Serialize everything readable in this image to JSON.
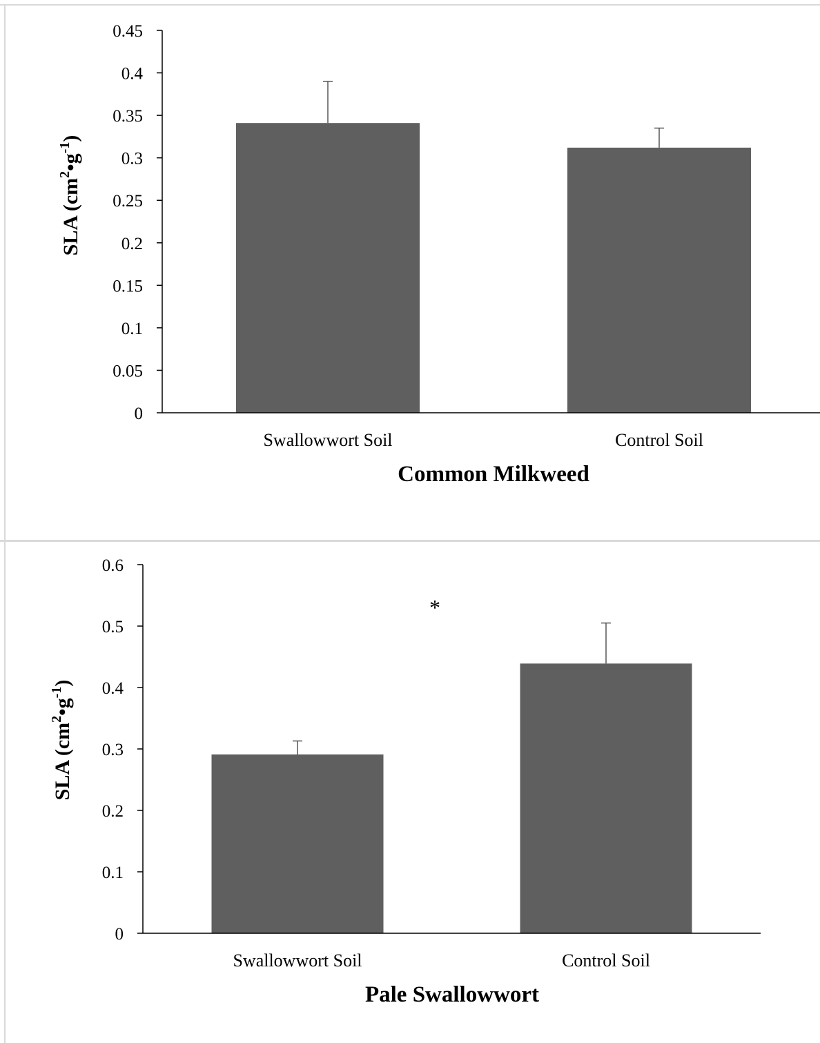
{
  "chart_data": [
    {
      "type": "bar",
      "categories": [
        "Swallowwort Soil",
        "Control Soil"
      ],
      "values": [
        0.341,
        0.312
      ],
      "error_plus": [
        0.049,
        0.023
      ],
      "xlabel": "Common Milkweed",
      "ylabel": {
        "main": "SLA (cm",
        "sup1": "2",
        "mid": "•g",
        "sup2": "-1",
        "end": ")"
      },
      "ylim": [
        0,
        0.45
      ],
      "yticks": [
        "0",
        "0.05",
        "0.1",
        "0.15",
        "0.2",
        "0.25",
        "0.3",
        "0.35",
        "0.4",
        "0.45"
      ],
      "bar_color": "#5f5f5f",
      "annotation": ""
    },
    {
      "type": "bar",
      "categories": [
        "Swallowwort Soil",
        "Control Soil"
      ],
      "values": [
        0.291,
        0.439
      ],
      "error_plus": [
        0.022,
        0.066
      ],
      "xlabel": "Pale Swallowwort",
      "ylabel": {
        "main": "SLA (cm",
        "sup1": "2",
        "mid": "•g",
        "sup2": "-1",
        "end": ")"
      },
      "ylim": [
        0,
        0.6
      ],
      "yticks": [
        "0",
        "0.1",
        "0.2",
        "0.3",
        "0.4",
        "0.5",
        "0.6"
      ],
      "bar_color": "#5f5f5f",
      "annotation": "*"
    }
  ]
}
